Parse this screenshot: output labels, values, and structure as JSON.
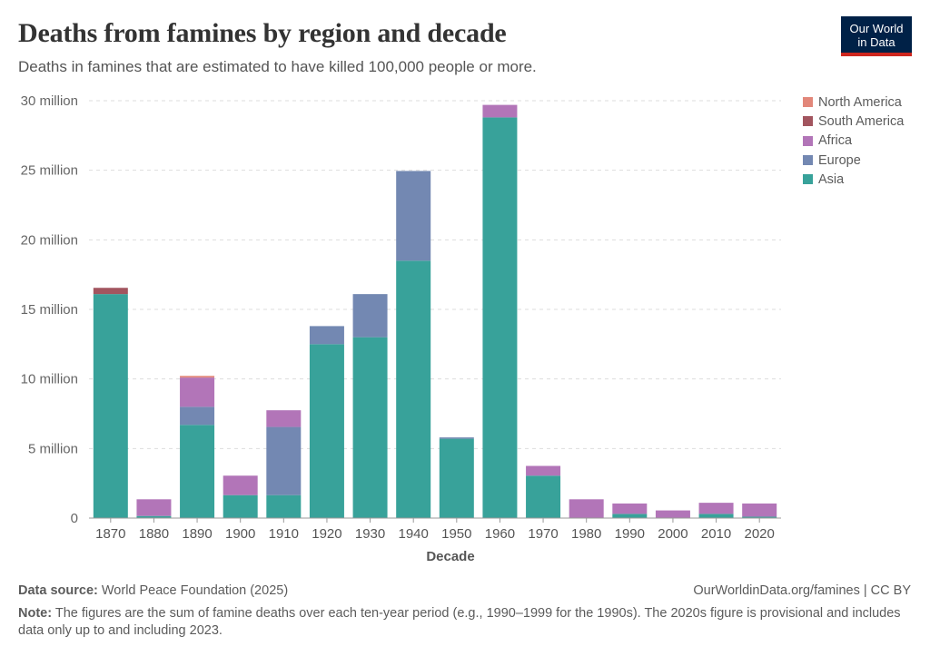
{
  "header": {
    "title": "Deaths from famines by region and decade",
    "subtitle": "Deaths in famines that are estimated to have killed 100,000 people or more."
  },
  "logo": {
    "line1": "Our World",
    "line2": "in Data"
  },
  "footer": {
    "source_label": "Data source:",
    "source_text": "World Peace Foundation (2025)",
    "url": "OurWorldinData.org/famines | CC BY",
    "note_label": "Note:",
    "note_text": "The figures are the sum of famine deaths over each ten-year period (e.g., 1990–1999 for the 1990s). The 2020s figure is provisional and includes data only up to and including 2023."
  },
  "chart_data": {
    "type": "bar",
    "stacked": true,
    "title": "Deaths from famines by region and decade",
    "xlabel": "Decade",
    "ylabel": "",
    "ylim": [
      0,
      30000000
    ],
    "yticks": [
      {
        "value": 0,
        "label": "0"
      },
      {
        "value": 5000000,
        "label": "5 million"
      },
      {
        "value": 10000000,
        "label": "10 million"
      },
      {
        "value": 15000000,
        "label": "15 million"
      },
      {
        "value": 20000000,
        "label": "20 million"
      },
      {
        "value": 25000000,
        "label": "25 million"
      },
      {
        "value": 30000000,
        "label": "30 million"
      }
    ],
    "grid": true,
    "legend_position": "right",
    "categories": [
      "1870",
      "1880",
      "1890",
      "1900",
      "1910",
      "1920",
      "1930",
      "1940",
      "1950",
      "1960",
      "1970",
      "1980",
      "1990",
      "2000",
      "2010",
      "2020"
    ],
    "series": [
      {
        "name": "Asia",
        "color": "#38a29a",
        "values": [
          16100000,
          150000,
          6700000,
          1650000,
          1650000,
          12500000,
          13000000,
          18500000,
          5700000,
          28800000,
          3050000,
          0,
          300000,
          0,
          300000,
          100000
        ]
      },
      {
        "name": "Europe",
        "color": "#7388b2",
        "values": [
          0,
          0,
          1300000,
          0,
          4900000,
          1300000,
          3100000,
          6450000,
          100000,
          0,
          0,
          0,
          0,
          0,
          0,
          0
        ]
      },
      {
        "name": "Africa",
        "color": "#b275b8",
        "values": [
          0,
          1200000,
          2100000,
          1400000,
          1200000,
          0,
          0,
          0,
          0,
          900000,
          700000,
          1350000,
          750000,
          550000,
          800000,
          950000
        ]
      },
      {
        "name": "South America",
        "color": "#a2555f",
        "values": [
          450000,
          0,
          0,
          0,
          0,
          0,
          0,
          0,
          0,
          0,
          0,
          0,
          0,
          0,
          0,
          0
        ]
      },
      {
        "name": "North America",
        "color": "#e2877a",
        "values": [
          0,
          0,
          120000,
          0,
          0,
          0,
          0,
          0,
          0,
          0,
          0,
          0,
          0,
          0,
          0,
          0
        ]
      }
    ],
    "legend_order": [
      "North America",
      "South America",
      "Africa",
      "Europe",
      "Asia"
    ]
  }
}
